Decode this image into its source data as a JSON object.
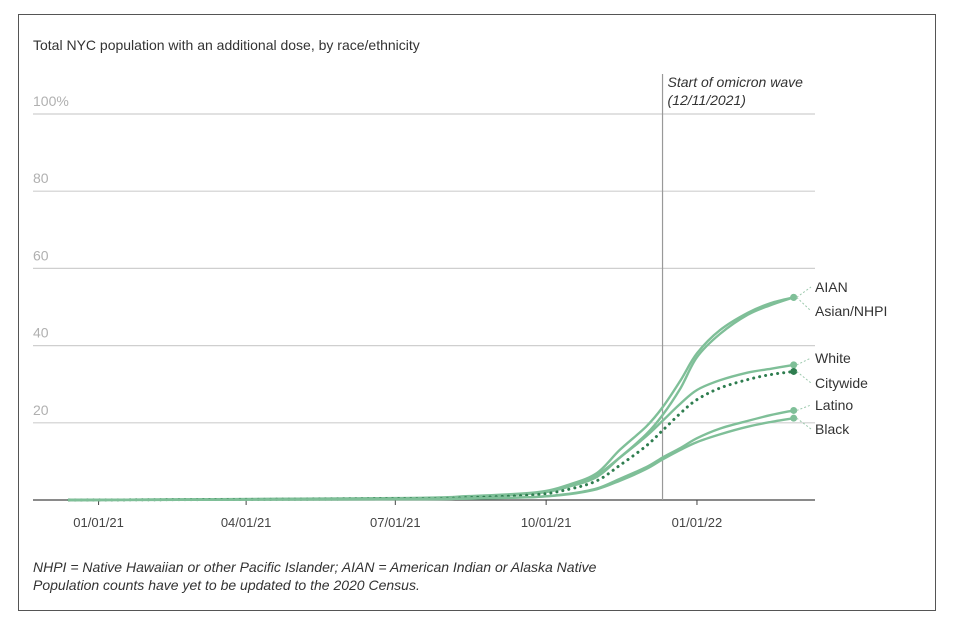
{
  "chart_data": {
    "type": "line",
    "title": "Total NYC population with an additional dose, by race/ethnicity",
    "xlabel": "",
    "ylabel": "",
    "x_tick_labels": [
      "01/01/21",
      "04/01/21",
      "07/01/21",
      "10/01/21",
      "01/01/22"
    ],
    "x_ticks": [
      "2021-01-01",
      "2021-04-01",
      "2021-07-01",
      "2021-10-01",
      "2022-01-01"
    ],
    "xlim": [
      "2020-11-22",
      "2022-03-14"
    ],
    "y_tick_labels": [
      "20",
      "40",
      "60",
      "80",
      "100%"
    ],
    "y_ticks": [
      20,
      40,
      60,
      80,
      100
    ],
    "ylim": [
      0,
      100
    ],
    "grid": true,
    "annotation": {
      "date": "2021-12-11",
      "line1": "Start of omicron wave",
      "line2": "(12/11/2021)"
    },
    "series": [
      {
        "name": "AIAN",
        "color": "#7fbf98",
        "dotted": false,
        "points": [
          [
            "2020-12-14",
            0
          ],
          [
            "2021-07-01",
            0.5
          ],
          [
            "2021-08-15",
            1
          ],
          [
            "2021-09-25",
            2
          ],
          [
            "2021-10-15",
            4
          ],
          [
            "2021-11-01",
            7
          ],
          [
            "2021-11-15",
            13
          ],
          [
            "2021-12-01",
            19
          ],
          [
            "2021-12-11",
            24
          ],
          [
            "2021-12-22",
            31
          ],
          [
            "2022-01-01",
            38
          ],
          [
            "2022-01-15",
            44
          ],
          [
            "2022-02-01",
            48.5
          ],
          [
            "2022-02-15",
            51
          ],
          [
            "2022-03-01",
            52.5
          ]
        ]
      },
      {
        "name": "Asian/NHPI",
        "color": "#7fbf98",
        "dotted": false,
        "points": [
          [
            "2020-12-14",
            0
          ],
          [
            "2021-07-01",
            0.4
          ],
          [
            "2021-08-15",
            0.9
          ],
          [
            "2021-09-25",
            1.8
          ],
          [
            "2021-10-15",
            3.5
          ],
          [
            "2021-11-01",
            6
          ],
          [
            "2021-11-15",
            11
          ],
          [
            "2021-12-01",
            17
          ],
          [
            "2021-12-11",
            22
          ],
          [
            "2021-12-22",
            29
          ],
          [
            "2022-01-01",
            37
          ],
          [
            "2022-01-15",
            43
          ],
          [
            "2022-02-01",
            48
          ],
          [
            "2022-02-15",
            50.5
          ],
          [
            "2022-03-01",
            52.5
          ]
        ]
      },
      {
        "name": "White",
        "color": "#7fbf98",
        "dotted": false,
        "points": [
          [
            "2020-12-14",
            0
          ],
          [
            "2021-07-01",
            0.4
          ],
          [
            "2021-08-15",
            0.8
          ],
          [
            "2021-09-25",
            1.8
          ],
          [
            "2021-10-15",
            3.5
          ],
          [
            "2021-11-01",
            6.5
          ],
          [
            "2021-11-15",
            11
          ],
          [
            "2021-12-01",
            16.5
          ],
          [
            "2021-12-11",
            20.5
          ],
          [
            "2021-12-22",
            25
          ],
          [
            "2022-01-01",
            28.5
          ],
          [
            "2022-01-15",
            31
          ],
          [
            "2022-02-01",
            33
          ],
          [
            "2022-02-15",
            34
          ],
          [
            "2022-03-01",
            35
          ]
        ]
      },
      {
        "name": "Citywide",
        "color": "#2e7d4f",
        "dotted": true,
        "points": [
          [
            "2020-12-14",
            0
          ],
          [
            "2021-07-01",
            0.3
          ],
          [
            "2021-08-15",
            0.6
          ],
          [
            "2021-09-25",
            1.4
          ],
          [
            "2021-10-15",
            2.8
          ],
          [
            "2021-11-01",
            5
          ],
          [
            "2021-11-15",
            9
          ],
          [
            "2021-12-01",
            14
          ],
          [
            "2021-12-11",
            18
          ],
          [
            "2021-12-22",
            22.5
          ],
          [
            "2022-01-01",
            26
          ],
          [
            "2022-01-15",
            29
          ],
          [
            "2022-02-01",
            31.2
          ],
          [
            "2022-02-15",
            32.5
          ],
          [
            "2022-03-01",
            33.3
          ]
        ]
      },
      {
        "name": "Latino",
        "color": "#7fbf98",
        "dotted": false,
        "points": [
          [
            "2020-12-14",
            0
          ],
          [
            "2021-07-01",
            0.2
          ],
          [
            "2021-08-15",
            0.4
          ],
          [
            "2021-09-25",
            0.8
          ],
          [
            "2021-10-15",
            1.6
          ],
          [
            "2021-11-01",
            3
          ],
          [
            "2021-11-15",
            5.5
          ],
          [
            "2021-12-01",
            8.5
          ],
          [
            "2021-12-11",
            11
          ],
          [
            "2021-12-22",
            13.5
          ],
          [
            "2022-01-01",
            16
          ],
          [
            "2022-01-15",
            18.5
          ],
          [
            "2022-02-01",
            20.5
          ],
          [
            "2022-02-15",
            22
          ],
          [
            "2022-03-01",
            23.2
          ]
        ]
      },
      {
        "name": "Black",
        "color": "#7fbf98",
        "dotted": false,
        "points": [
          [
            "2020-12-14",
            0
          ],
          [
            "2021-07-01",
            0.2
          ],
          [
            "2021-08-15",
            0.4
          ],
          [
            "2021-09-25",
            0.8
          ],
          [
            "2021-10-15",
            1.5
          ],
          [
            "2021-11-01",
            2.8
          ],
          [
            "2021-11-15",
            5
          ],
          [
            "2021-12-01",
            8
          ],
          [
            "2021-12-11",
            10.5
          ],
          [
            "2021-12-22",
            13
          ],
          [
            "2022-01-01",
            15
          ],
          [
            "2022-01-15",
            17
          ],
          [
            "2022-02-01",
            19
          ],
          [
            "2022-02-15",
            20.2
          ],
          [
            "2022-03-01",
            21.2
          ]
        ]
      }
    ]
  },
  "footnotes": {
    "line1": "NHPI = Native Hawaiian or other Pacific Islander; AIAN = American Indian or Alaska Native",
    "line2": "Population counts have yet to be updated to the 2020 Census."
  }
}
